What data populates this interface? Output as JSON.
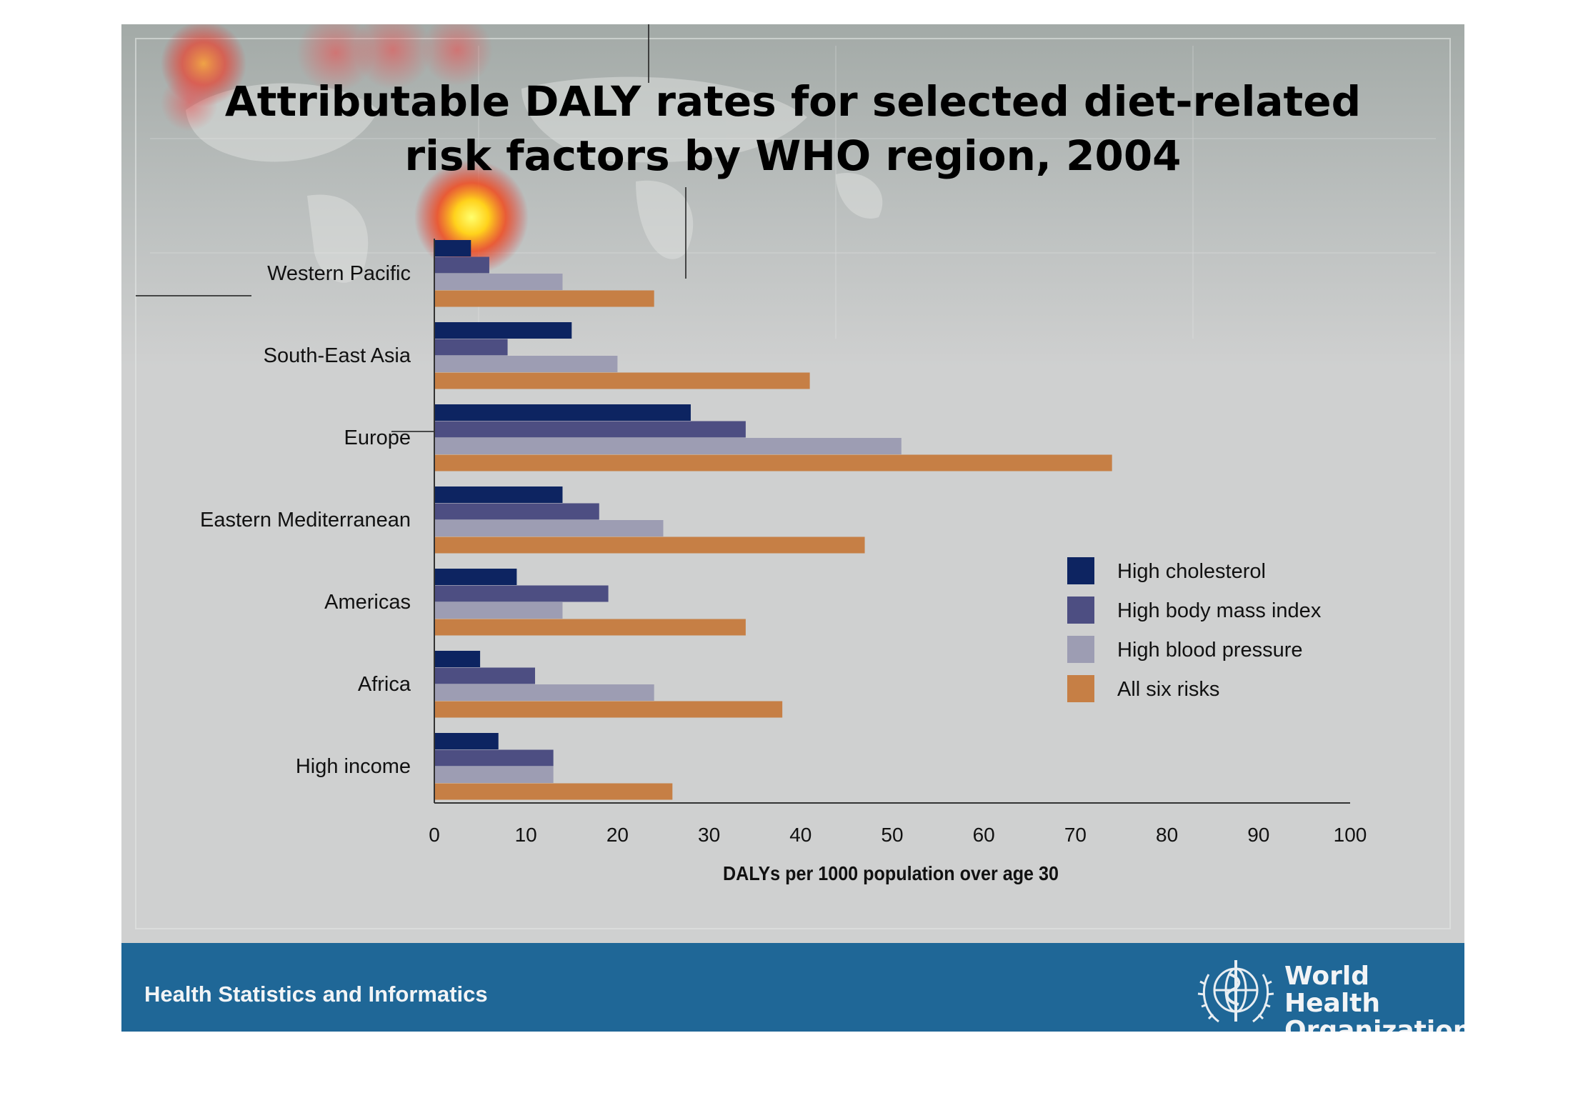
{
  "title": {
    "line1": "Attributable DALY rates for selected diet-related",
    "line2": "risk factors by WHO region, 2004"
  },
  "chart_data": {
    "type": "bar",
    "orientation": "horizontal",
    "categories": [
      "Western Pacific",
      "South-East Asia",
      "Europe",
      "Eastern Mediterranean",
      "Americas",
      "Africa",
      "High income"
    ],
    "series": [
      {
        "name": "High cholesterol",
        "color": "#0d2461",
        "values": [
          4,
          15,
          28,
          14,
          9,
          5,
          7
        ]
      },
      {
        "name": "High body mass index",
        "color": "#4d4e82",
        "values": [
          6,
          8,
          34,
          18,
          19,
          11,
          13
        ]
      },
      {
        "name": "High blood pressure",
        "color": "#9d9db3",
        "values": [
          14,
          20,
          51,
          25,
          14,
          24,
          13
        ]
      },
      {
        "name": "All six risks",
        "color": "#c67f45",
        "values": [
          24,
          41,
          74,
          47,
          34,
          38,
          26
        ]
      }
    ],
    "xlabel": "DALYs per 1000 population over age 30",
    "ylabel": "",
    "xlim": [
      0,
      100
    ],
    "xticks": [
      "0",
      "10",
      "20",
      "30",
      "40",
      "50",
      "60",
      "70",
      "80",
      "90",
      "100"
    ],
    "legend_position": "right",
    "grid": false
  },
  "footer": {
    "text": "Health Statistics and Informatics",
    "org_line1": "World Health",
    "org_line2": "Organization"
  }
}
